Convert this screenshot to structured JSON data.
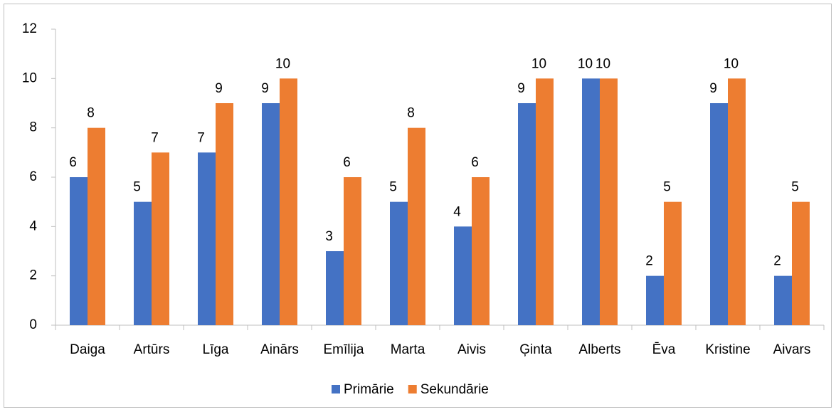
{
  "chart_data": {
    "type": "bar",
    "categories": [
      "Daiga",
      "Artūrs",
      "Līga",
      "Ainārs",
      "Emīlija",
      "Marta",
      "Aivis",
      "Ģinta",
      "Alberts",
      "Ēva",
      "Kristine",
      "Aivars"
    ],
    "series": [
      {
        "name": "Primārie",
        "color": "#4472c4",
        "values": [
          6,
          5,
          7,
          9,
          3,
          5,
          4,
          9,
          10,
          2,
          9,
          2
        ]
      },
      {
        "name": "Sekundārie",
        "color": "#ed7d31",
        "values": [
          8,
          7,
          9,
          10,
          6,
          8,
          6,
          10,
          10,
          5,
          10,
          5
        ]
      }
    ],
    "ylim": [
      0,
      12
    ],
    "yticks": [
      0,
      2,
      4,
      6,
      8,
      10,
      12
    ],
    "grid": false,
    "legend": "bottom"
  }
}
